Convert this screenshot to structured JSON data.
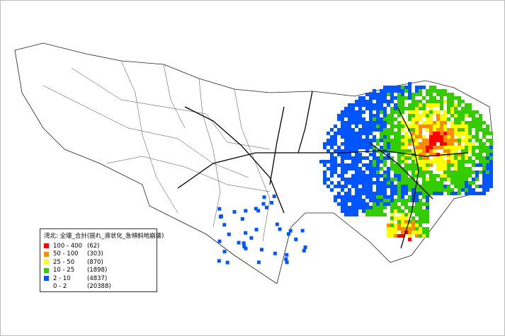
{
  "legend": {
    "title": "湾北: 全壊_合計(揺れ_液状化_急傾斜地崩壊)",
    "items": [
      {
        "range": "100 - 400",
        "count": "(62)",
        "color": "#ff0000"
      },
      {
        "range": "50 - 100",
        "count": "(303)",
        "color": "#ff8c00"
      },
      {
        "range": "25 - 50",
        "count": "(870)",
        "color": "#ffff00"
      },
      {
        "range": "10 - 25",
        "count": "(1898)",
        "color": "#33cc00"
      },
      {
        "range": "2 - 10",
        "count": "(4837)",
        "color": "#0055ff"
      },
      {
        "range": "0 - 2",
        "count": "(20388)",
        "color": "#ffffff"
      }
    ]
  }
}
